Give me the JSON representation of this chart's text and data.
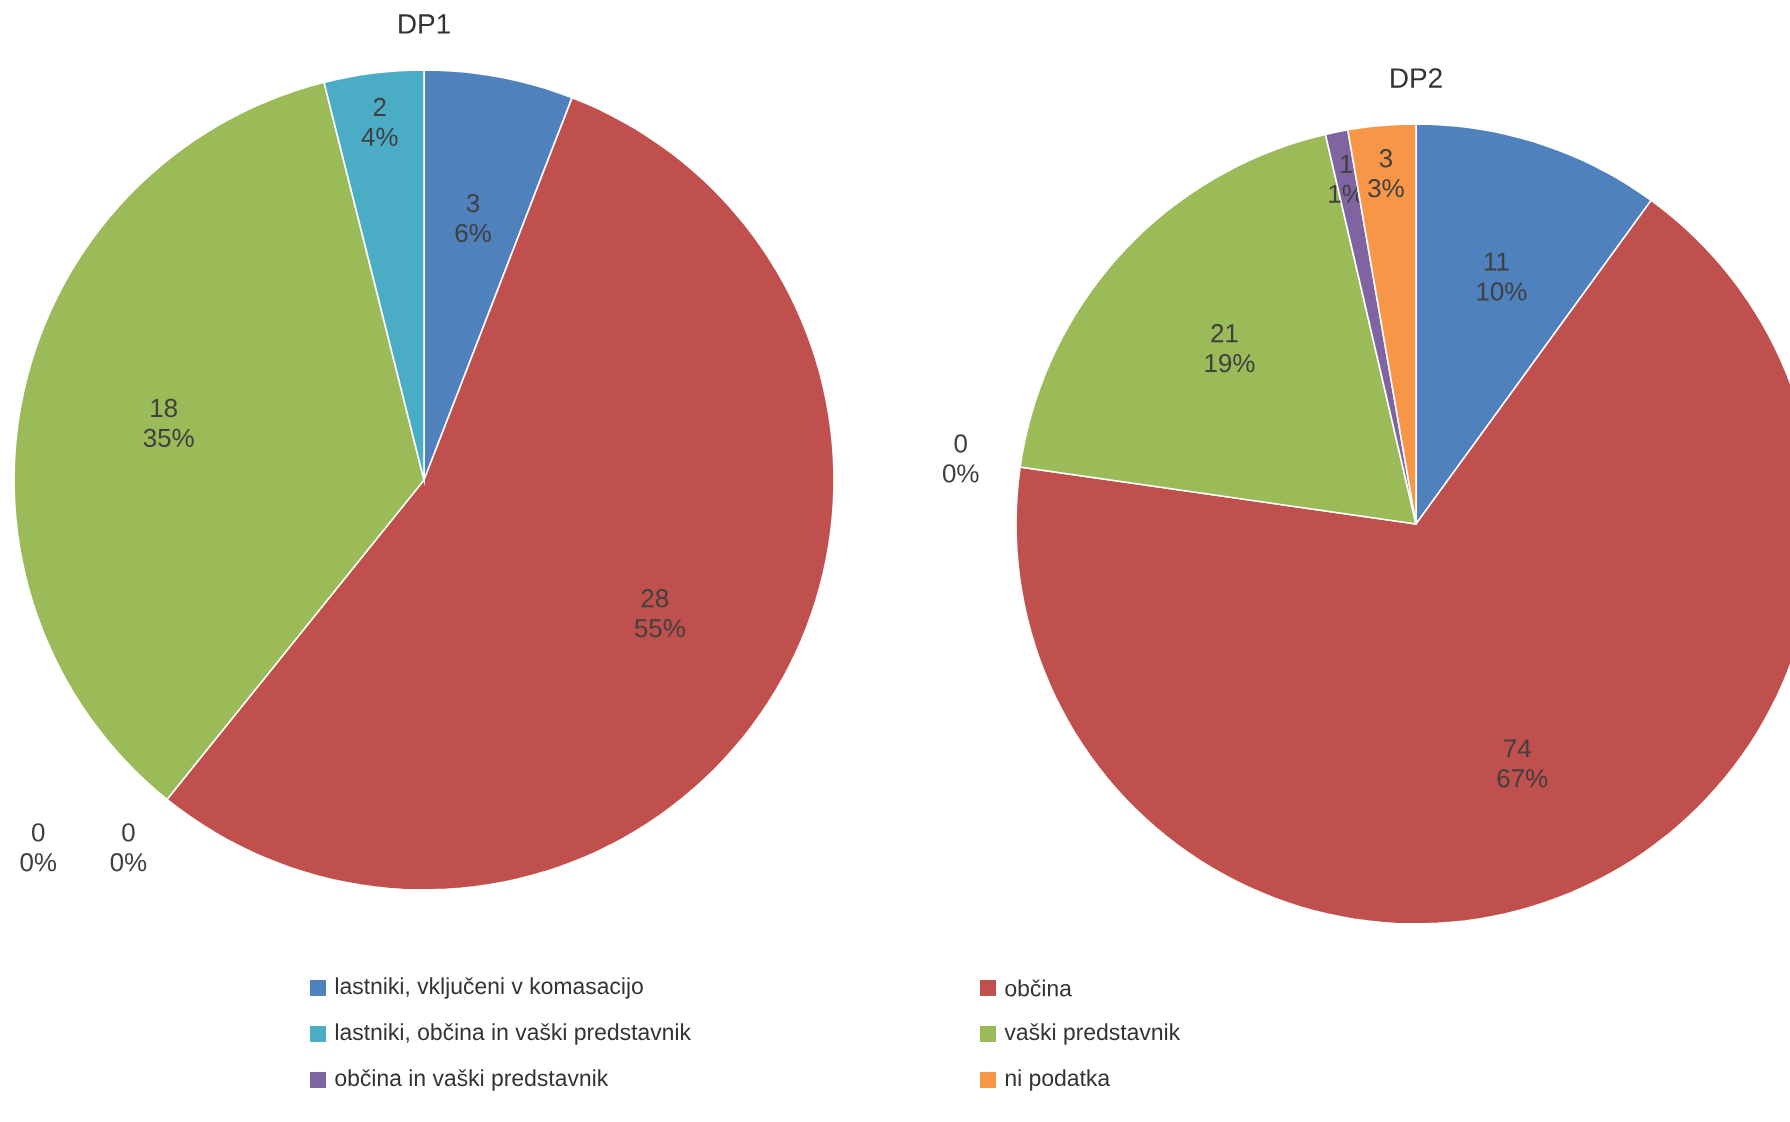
{
  "chart_data": [
    {
      "type": "pie",
      "title": "DP1",
      "categories": [
        null,
        null,
        null,
        null,
        null,
        null
      ],
      "values": [
        3,
        28,
        0,
        0,
        18,
        2
      ],
      "colors": [
        "#4f81bd",
        "#c0504d",
        "#8064a2",
        "#f79646",
        "#9bbb59",
        "#4bacc6"
      ],
      "value_labels": [
        "3 6%",
        "28 55%",
        "0 0%",
        "0 0%",
        "18 35%",
        "2 4%"
      ],
      "legend": false
    },
    {
      "type": "pie",
      "title": "DP2",
      "categories": [
        "lastniki, vključeni v komasacijo",
        "občina",
        "lastniki, občina in vaški predstavnik",
        "vaški predstavnik",
        "občina in vaški predstavnik",
        "ni podatka"
      ],
      "values": [
        11,
        74,
        0,
        21,
        1,
        3
      ],
      "colors": [
        "#4f81bd",
        "#c0504d",
        "#4bacc6",
        "#9bbb59",
        "#8064a2",
        "#f79646"
      ],
      "value_labels": [
        "11 10%",
        "74 67%",
        "0 0%",
        "21 19%",
        "1 1%",
        "3 3%"
      ],
      "legend": "bottom"
    }
  ]
}
